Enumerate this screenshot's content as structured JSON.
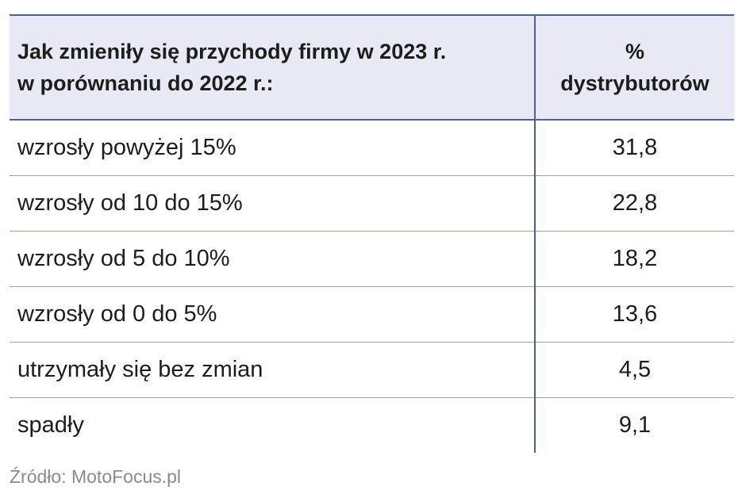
{
  "table": {
    "header": {
      "question_line1": "Jak zmieniły się przychody firmy w 2023 r.",
      "question_line2": "w porównaniu do 2022 r.:",
      "pct_line1": "%",
      "pct_line2": "dystrybutorów"
    },
    "rows": [
      {
        "label": "wzrosły powyżej 15%",
        "value": "31,8"
      },
      {
        "label": "wzrosły od 10 do 15%",
        "value": "22,8"
      },
      {
        "label": "wzrosły od 5 do 10%",
        "value": "18,2"
      },
      {
        "label": "wzrosły od 0 do 5%",
        "value": "13,6"
      },
      {
        "label": "utrzymały się bez zmian",
        "value": "4,5"
      },
      {
        "label": "spadły",
        "value": "9,1"
      }
    ]
  },
  "source": "Źródło: MotoFocus.pl",
  "colors": {
    "header_bg": "#e9e9f5",
    "rule": "#4a6491",
    "row_rule": "#8ea4c4",
    "source_text": "#8a8a8a"
  },
  "chart_data": {
    "type": "table",
    "columns": [
      "Jak zmieniły się przychody firmy w 2023 r. w porównaniu do 2022 r.:",
      "% dystrybutorów"
    ],
    "categories": [
      "wzrosły powyżej 15%",
      "wzrosły od 10 do 15%",
      "wzrosły od 5 do 10%",
      "wzrosły od 0 do 5%",
      "utrzymały się bez zmian",
      "spadły"
    ],
    "values": [
      31.8,
      22.8,
      18.2,
      13.6,
      4.5,
      9.1
    ]
  }
}
